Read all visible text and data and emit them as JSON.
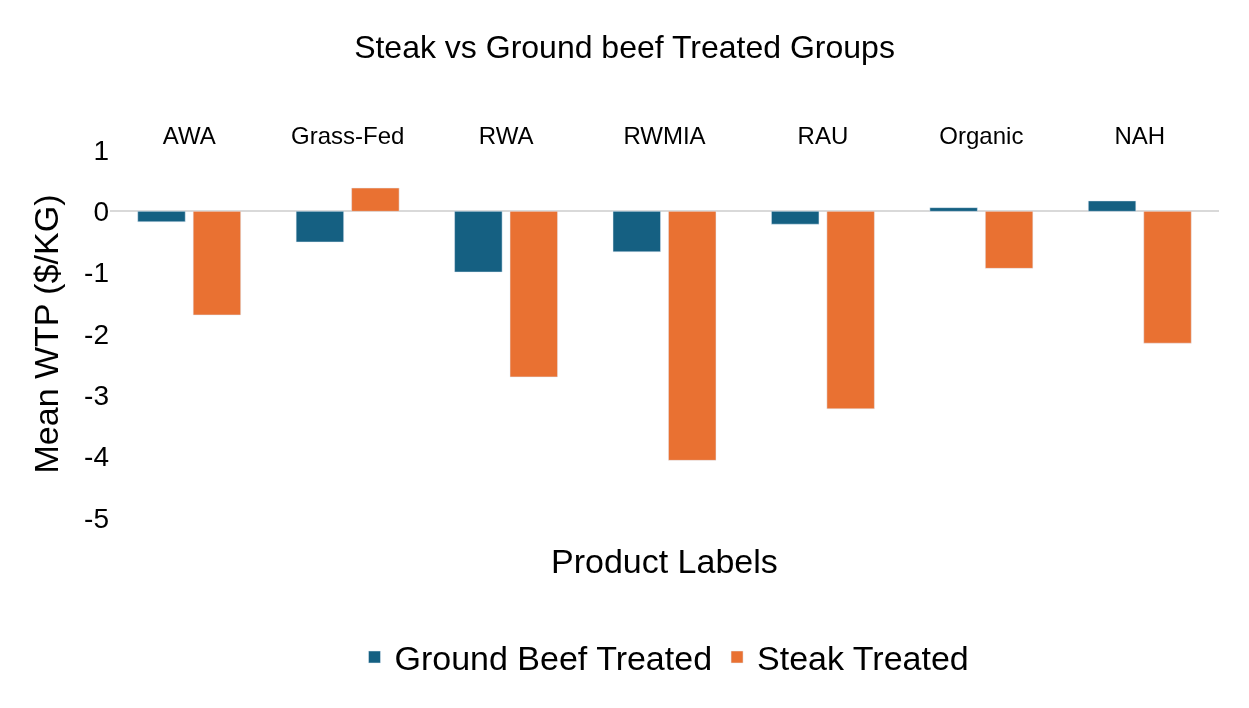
{
  "chart_data": {
    "type": "bar",
    "title": "Steak vs Ground beef Treated Groups",
    "xlabel": "Product Labels",
    "ylabel": "Mean WTP ($/KG)",
    "categories": [
      "AWA",
      "Grass-Fed",
      "RWA",
      "RWMIA",
      "RAU",
      "Organic",
      "NAH"
    ],
    "series": [
      {
        "name": "Ground Beef Treated",
        "color": "#156082",
        "values": [
          -0.17,
          -0.5,
          -0.99,
          -0.66,
          -0.21,
          0.06,
          0.17
        ]
      },
      {
        "name": "Steak Treated",
        "color": "#e97132",
        "values": [
          -1.69,
          0.38,
          -2.7,
          -4.06,
          -3.22,
          -0.93,
          -2.15
        ]
      }
    ],
    "ylim": [
      -5,
      1
    ],
    "yticks": [
      -5,
      -4,
      -3,
      -2,
      -1,
      0,
      1
    ],
    "legend": "bottom"
  }
}
